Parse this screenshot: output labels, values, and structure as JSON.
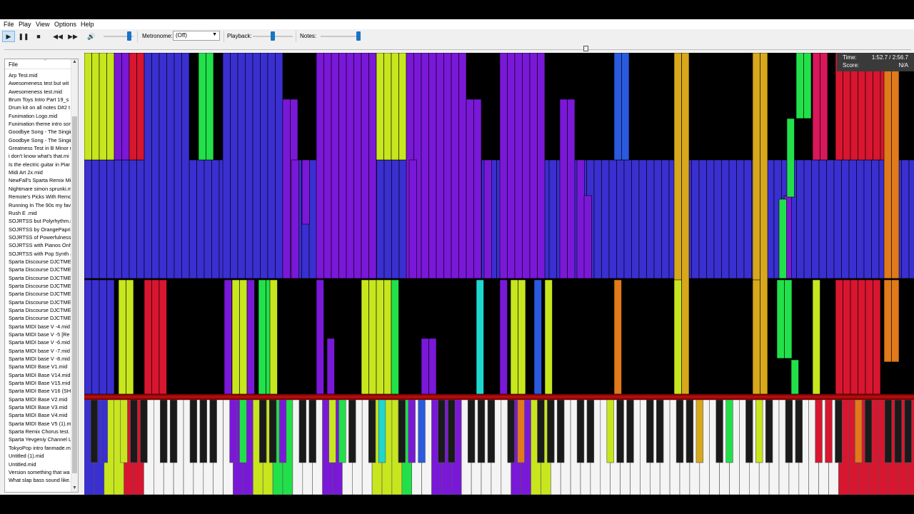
{
  "menu": [
    "File",
    "Play",
    "View",
    "Options",
    "Help"
  ],
  "toolbar": {
    "play_icon": "play-icon",
    "pause_icon": "pause-icon",
    "stop_icon": "stop-icon",
    "rewind_icon": "rewind-icon",
    "forward_icon": "fast-forward-icon",
    "volume_icon": "volume-icon",
    "metronome_label": "Metronome:",
    "metronome_value": "(Off)",
    "playback_label": "Playback:",
    "notes_label": "Notes:"
  },
  "sidebar": {
    "header": "File",
    "files": [
      "Arp Test.mid",
      "Awesomeness test but wit",
      "Awesomeness test.mid",
      "Brum Toys Intro Part 19_s",
      "Drum kit on all notes D#2 t",
      "Funimation Logo.mid",
      "Funimation theme intro sor",
      "Goodbye Song - The Singir",
      "Goodbye Song - The Singir",
      "Greatness Test in B Minor u",
      "i don't know what's that.mi",
      "Is the electric guitar in Piar",
      "Midi Art 2x.mid",
      "NewFall's Sparta Remix Mir",
      "Nightmare simon sprunki.m",
      "Remote's Picks With Remot",
      "Running In The 90s my fav",
      "Rush E .mid",
      "SOJRTSS but Polyrhythm.r",
      "SOJRTSS by OrangePaprik",
      "SOJRTSS of Powerfulness.",
      "SOJRTSS with Pianos Only",
      "SOJRTSS with Pop Synth a",
      "Sparta Discourse DJCTME I",
      "Sparta Discourse DJCTME I",
      "Sparta Discourse DJCTME I",
      "Sparta Discourse DJCTME I",
      "Sparta Discourse DJCTME I",
      "Sparta Discourse DJCTME I",
      "Sparta Discourse DJCTME I",
      "Sparta Discourse DJCTME I",
      "Sparta MIDI base V -4.mid",
      "Sparta MIDI base V -5 [Re",
      "Sparta MIDI base V -6.mid",
      "Sparta MIDI base V -7.mid",
      "Sparta MIDI base V -8.mid",
      "Sparta MIDI Base V1.mid",
      "Sparta MIDI Base V14.mid",
      "Sparta MIDI Base V15.mid",
      "Sparta MIDI Base V16 (SH",
      "Sparta MIDI Base V2.mid",
      "Sparta MIDI Base V3.mid",
      "Sparta MIDI Base V4.mid",
      "Sparta MIDI Base V5 (1).m",
      "Sparta Remix Chorus test.",
      "Sparta Yevgeniy Channel L",
      "TokyoPop intro fanmade.m",
      "Untitled (1).mid",
      "Untitled.mid",
      "Version something that wa",
      "What slap bass sound like."
    ]
  },
  "hud": {
    "time_label": "Time:",
    "time_value": "1:52.7 / 2:56.7",
    "score_label": "Score:",
    "score_value": "N/A"
  },
  "colors": {
    "blue": "#3a2fd0",
    "purple": "#7a18d8",
    "yellow": "#c8e61e",
    "green": "#22e04a",
    "red": "#d81630",
    "orange": "#e07a1a",
    "gold": "#d8a81c",
    "cyan": "#1ed8d0",
    "pink": "#d8185a",
    "royal": "#2a5ae0"
  }
}
